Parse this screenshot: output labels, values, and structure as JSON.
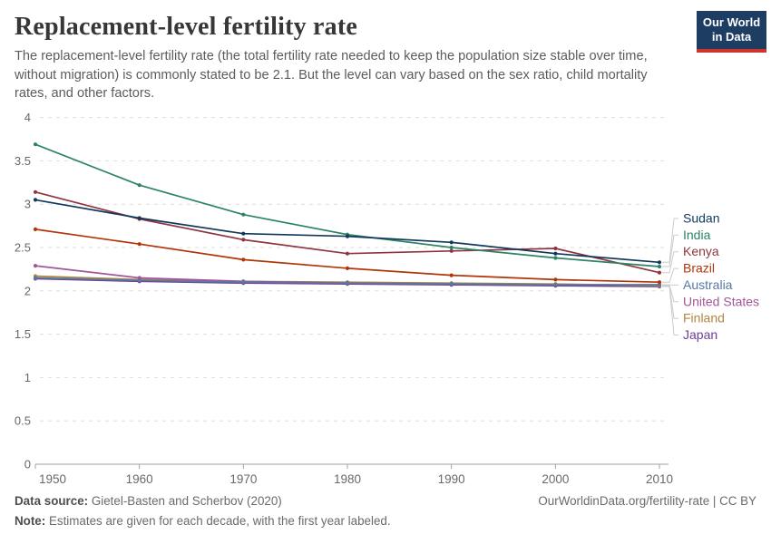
{
  "header": {
    "title": "Replacement-level fertility rate",
    "subtitle": "The replacement-level fertility rate (the total fertility rate needed to keep the population size stable over time, without migration) is commonly stated to be 2.1. But the level can vary based on the sex ratio, child mortality rates, and other factors.",
    "logo": {
      "line1": "Our World",
      "line2": "in Data"
    }
  },
  "chart_data": {
    "type": "line",
    "x": [
      1950,
      1960,
      1970,
      1980,
      1990,
      2000,
      2010
    ],
    "series": [
      {
        "name": "Sudan",
        "color": "#10385f",
        "values": [
          3.05,
          2.84,
          2.66,
          2.63,
          2.56,
          2.43,
          2.33
        ]
      },
      {
        "name": "India",
        "color": "#2c8465",
        "values": [
          3.69,
          3.22,
          2.88,
          2.65,
          2.5,
          2.38,
          2.28
        ]
      },
      {
        "name": "Kenya",
        "color": "#90353f",
        "values": [
          3.14,
          2.83,
          2.59,
          2.43,
          2.46,
          2.49,
          2.21
        ]
      },
      {
        "name": "Brazil",
        "color": "#b13507",
        "values": [
          2.71,
          2.54,
          2.36,
          2.26,
          2.18,
          2.13,
          2.1
        ]
      },
      {
        "name": "Australia",
        "color": "#5878a3",
        "values": [
          2.15,
          2.12,
          2.1,
          2.09,
          2.08,
          2.07,
          2.07
        ]
      },
      {
        "name": "United States",
        "color": "#a2559c",
        "values": [
          2.29,
          2.15,
          2.11,
          2.09,
          2.08,
          2.07,
          2.07
        ]
      },
      {
        "name": "Finland",
        "color": "#b08643",
        "values": [
          2.17,
          2.13,
          2.11,
          2.1,
          2.09,
          2.08,
          2.06
        ]
      },
      {
        "name": "Japan",
        "color": "#6d3e91",
        "values": [
          2.14,
          2.11,
          2.09,
          2.08,
          2.07,
          2.06,
          2.05
        ]
      }
    ],
    "title": "Replacement-level fertility rate",
    "xlabel": "",
    "ylabel": "",
    "ylim": [
      0,
      4
    ],
    "yticks": [
      0,
      0.5,
      1,
      1.5,
      2,
      2.5,
      3,
      3.5,
      4
    ],
    "grid": true,
    "legend_position": "right",
    "note": "Estimates are given for each decade, with the first year labeled."
  },
  "footer": {
    "source_label": "Data source:",
    "source_text": " Gietel-Basten and Scherbov (2020)",
    "note_label": "Note:",
    "note_text": " Estimates are given for each decade, with the first year labeled.",
    "right_text": "OurWorldinData.org/fertility-rate | CC BY"
  }
}
